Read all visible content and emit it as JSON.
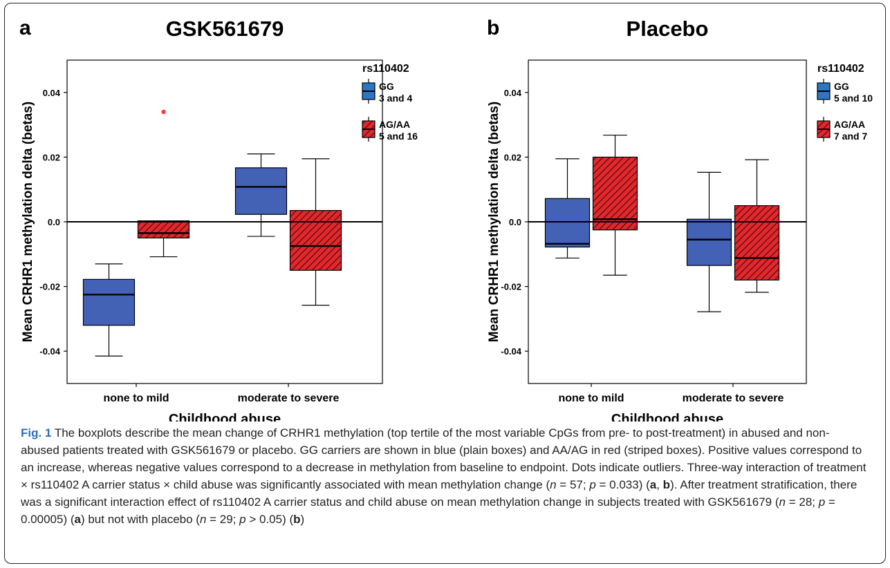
{
  "chart_data": [
    {
      "type": "boxplot",
      "panel_label": "a",
      "title": "GSK561679",
      "xlabel": "Childhood abuse",
      "ylabel": "Mean CRHR1 methylation delta (betas)",
      "ylim": [
        -0.05,
        0.05
      ],
      "yticks": [
        "0.04",
        "0.02",
        "0.0",
        "-0.02",
        "-0.04"
      ],
      "categories": [
        "none to mild",
        "moderate to severe"
      ],
      "reference_line": 0,
      "legend": {
        "title": "rs110402",
        "entries": [
          {
            "name": "GG",
            "count": "3 and 4"
          },
          {
            "name": "AG/AA",
            "count": "5 and 16"
          }
        ],
        "placement": "right"
      },
      "series": [
        {
          "name": "GG",
          "color": "#4361b5",
          "striped": false,
          "boxes": [
            {
              "whisker_low": -0.0415,
              "q1": -0.032,
              "median": -0.0225,
              "q3": -0.0178,
              "whisker_high": -0.013,
              "outliers": []
            },
            {
              "whisker_low": -0.0045,
              "q1": 0.0023,
              "median": 0.0108,
              "q3": 0.0167,
              "whisker_high": 0.021,
              "outliers": []
            }
          ]
        },
        {
          "name": "AG/AA",
          "color": "#e3272c",
          "striped": true,
          "boxes": [
            {
              "whisker_low": -0.0108,
              "q1": -0.005,
              "median": -0.0035,
              "q3": 0.0003,
              "whisker_high": 0.0003,
              "outliers": [
                0.034
              ]
            },
            {
              "whisker_low": -0.0258,
              "q1": -0.015,
              "median": -0.0075,
              "q3": 0.0035,
              "whisker_high": 0.0195,
              "outliers": []
            }
          ]
        }
      ]
    },
    {
      "type": "boxplot",
      "panel_label": "b",
      "title": "Placebo",
      "xlabel": "Childhood abuse",
      "ylabel": "Mean CRHR1 methylation delta (betas)",
      "ylim": [
        -0.05,
        0.05
      ],
      "yticks": [
        "0.04",
        "0.02",
        "0.0",
        "-0.02",
        "-0.04"
      ],
      "categories": [
        "none to mild",
        "moderate to severe"
      ],
      "reference_line": 0,
      "legend": {
        "title": "rs110402",
        "entries": [
          {
            "name": "GG",
            "count": "5 and 10"
          },
          {
            "name": "AG/AA",
            "count": "7 and 7"
          }
        ],
        "placement": "right"
      },
      "series": [
        {
          "name": "GG",
          "color": "#4361b5",
          "striped": false,
          "boxes": [
            {
              "whisker_low": -0.0112,
              "q1": -0.0078,
              "median": -0.0068,
              "q3": 0.0072,
              "whisker_high": 0.0195,
              "outliers": []
            },
            {
              "whisker_low": -0.0278,
              "q1": -0.0135,
              "median": -0.0055,
              "q3": 0.0008,
              "whisker_high": 0.0153,
              "outliers": []
            }
          ]
        },
        {
          "name": "AG/AA",
          "color": "#e3272c",
          "striped": true,
          "boxes": [
            {
              "whisker_low": -0.0165,
              "q1": -0.0025,
              "median": 0.0008,
              "q3": 0.02,
              "whisker_high": 0.0268,
              "outliers": []
            },
            {
              "whisker_low": -0.0218,
              "q1": -0.018,
              "median": -0.0112,
              "q3": 0.005,
              "whisker_high": 0.0192,
              "outliers": []
            }
          ]
        }
      ]
    }
  ],
  "caption": {
    "fig_label": "Fig. 1",
    "s1": " The boxplots describe the mean change of CRHR1 methylation (top tertile of the most variable CpGs from pre- to post-treatment) in abused and non-abused patients treated with GSK561679 or placebo. GG carriers are shown in blue (plain boxes) and AA/AG in red (striped boxes). Positive values correspond to an increase, whereas negative values correspond to a decrease in methylation from baseline to endpoint. Dots indicate outliers. Three-way interaction of treatment × rs110402 A carrier status × child abuse was significantly associated with mean methylation change (",
    "n1": "n",
    "s2": " = 57; ",
    "p1": "p",
    "s3": " = 0.033) (",
    "a1": "a",
    "s4": ", ",
    "b1": "b",
    "s5": "). After treatment stratification, there was a significant interaction effect of rs110402 A carrier status and child abuse on mean methylation change in subjects treated with GSK561679 (",
    "n2": "n",
    "s6": " = 28; ",
    "p2": "p",
    "s7": " = 0.00005) (",
    "a2": "a",
    "s8": ") but not with placebo (",
    "n3": "n",
    "s9": " = 29; ",
    "p3": "p",
    "s10": " > 0.05) (",
    "b2": "b",
    "s11": ")"
  }
}
